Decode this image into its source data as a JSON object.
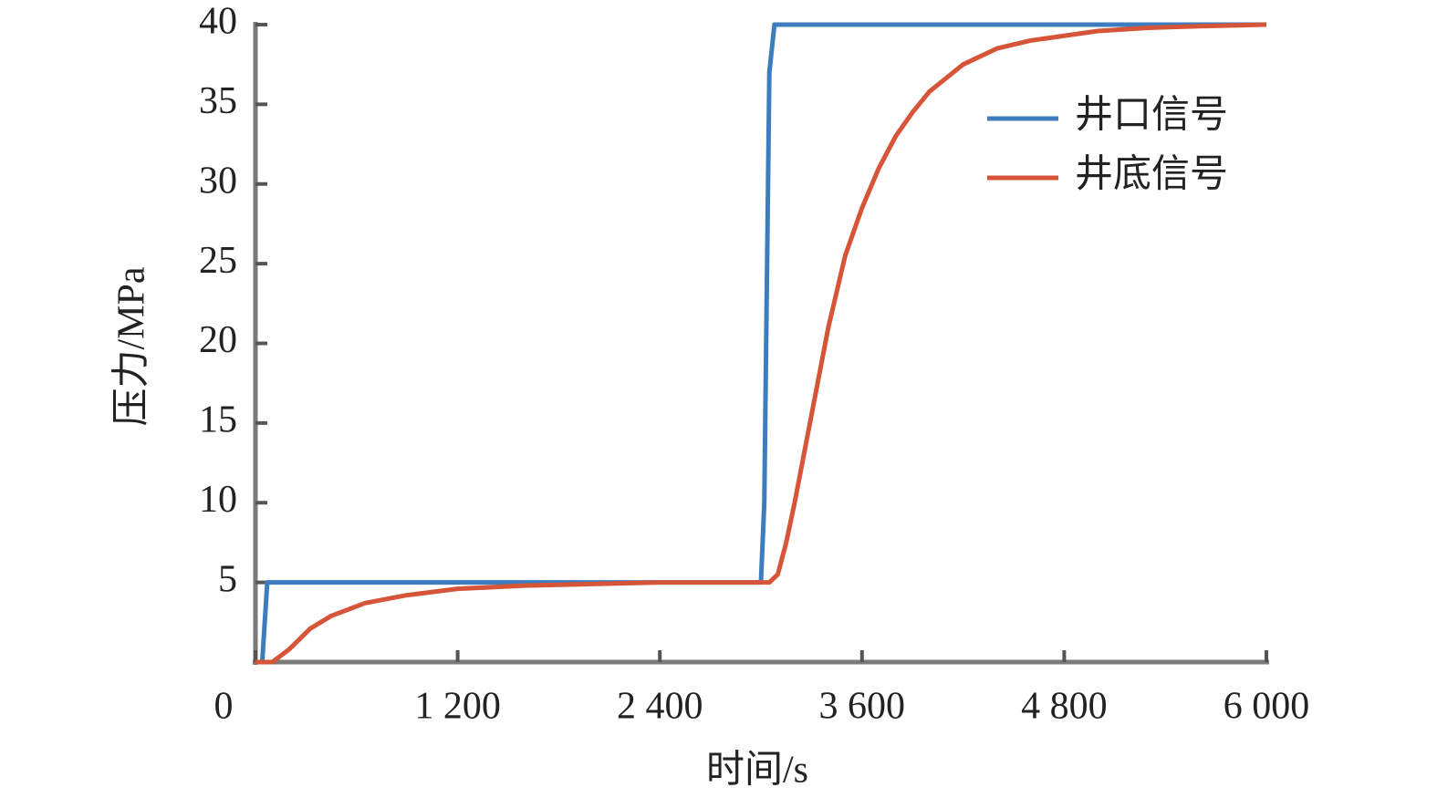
{
  "chart_data": {
    "type": "line",
    "xlabel": "时间/s",
    "ylabel": "压力/MPa",
    "xlim": [
      0,
      6000
    ],
    "ylim": [
      0,
      40
    ],
    "xticks": [
      0,
      {
        "value": 1200,
        "label": "1 200"
      },
      {
        "value": 2400,
        "label": "2 400"
      },
      {
        "value": 3600,
        "label": "3 600"
      },
      {
        "value": 4800,
        "label": "4 800"
      },
      {
        "value": 6000,
        "label": "6 000"
      }
    ],
    "yticks": [
      5,
      10,
      15,
      20,
      25,
      30,
      35,
      40
    ],
    "legend": "upper right",
    "series": [
      {
        "name": "井口信号",
        "color": "#3d7dbf",
        "x": [
          0,
          40,
          70,
          3000,
          3020,
          3050,
          3080,
          6000
        ],
        "values": [
          0,
          0,
          5,
          5,
          10,
          37,
          40,
          40
        ]
      },
      {
        "name": "井底信号",
        "color": "#d65538",
        "x": [
          0,
          100,
          200,
          325,
          450,
          650,
          900,
          1200,
          1600,
          2000,
          2400,
          2800,
          3050,
          3100,
          3150,
          3200,
          3300,
          3400,
          3500,
          3600,
          3700,
          3800,
          3900,
          4000,
          4200,
          4400,
          4600,
          4800,
          5000,
          5300,
          5600,
          6000
        ],
        "values": [
          0,
          0,
          0.8,
          2.1,
          2.9,
          3.7,
          4.2,
          4.6,
          4.8,
          4.9,
          5,
          5,
          5,
          5.5,
          7.5,
          10,
          15.5,
          21,
          25.5,
          28.5,
          31,
          33,
          34.5,
          35.8,
          37.5,
          38.5,
          39,
          39.3,
          39.6,
          39.8,
          39.9,
          40
        ]
      }
    ]
  }
}
